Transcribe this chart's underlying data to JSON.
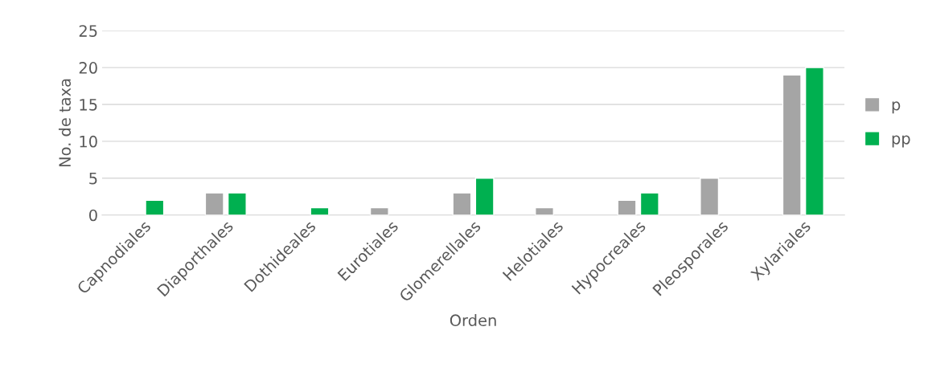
{
  "chart_data": {
    "type": "bar",
    "xlabel": "Orden",
    "ylabel": "No. de taxa",
    "categories": [
      "Capnodiales",
      "Diaporthales",
      "Dothideales",
      "Eurotiales",
      "Glomerellales",
      "Helotiales",
      "Hypocreales",
      "Pleosporales",
      "Xylariales"
    ],
    "series": [
      {
        "name": "p",
        "color": "#a5a5a5",
        "values": [
          null,
          3,
          null,
          1,
          3,
          1,
          2,
          5,
          19
        ]
      },
      {
        "name": "pp",
        "color": "#00b050",
        "values": [
          2,
          3,
          1,
          null,
          5,
          null,
          3,
          null,
          20
        ]
      }
    ],
    "ylim": [
      0,
      25
    ],
    "yticks": [
      0,
      5,
      10,
      15,
      20,
      25
    ],
    "grid": "y",
    "legend": "right"
  }
}
